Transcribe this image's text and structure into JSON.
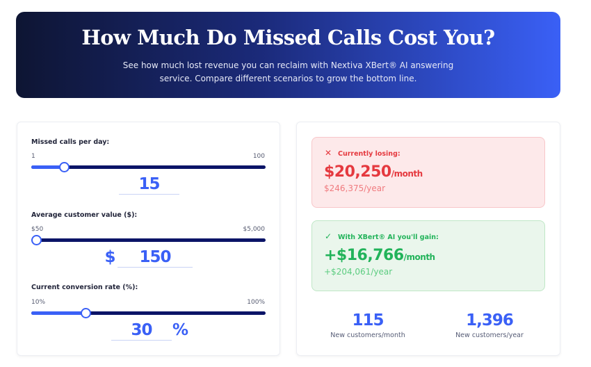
{
  "header": {
    "title": "How Much Do Missed Calls Cost You?",
    "subtitle": "See how much lost revenue you can reclaim with Nextiva XBert® AI answering service. Compare different scenarios to grow the bottom line."
  },
  "inputs": [
    {
      "label": "Missed calls per day:",
      "min": "1",
      "max": "100",
      "value": "15",
      "prefix": "",
      "suffix": "",
      "fraction": 0.14
    },
    {
      "label": "Average customer value ($):",
      "min": "$50",
      "max": "$5,000",
      "value": "150",
      "prefix": "$",
      "suffix": "",
      "fraction": 0.02
    },
    {
      "label": "Current conversion rate (%):",
      "min": "10%",
      "max": "100%",
      "value": "30",
      "prefix": "",
      "suffix": "%",
      "fraction": 0.23
    }
  ],
  "losing": {
    "label": "Currently losing:",
    "amount": "$20,250",
    "unit": "/month",
    "yearly": "$246,375/year",
    "icon": "x-icon",
    "color": "#e5393f"
  },
  "gain": {
    "label": "With XBert® AI you'll gain:",
    "amount": "+$16,766",
    "unit": "/month",
    "yearly": "+$204,061/year",
    "icon": "check-icon",
    "color": "#22b35a"
  },
  "stats": [
    {
      "value": "115",
      "label": "New customers/month"
    },
    {
      "value": "1,396",
      "label": "New customers/year"
    }
  ]
}
